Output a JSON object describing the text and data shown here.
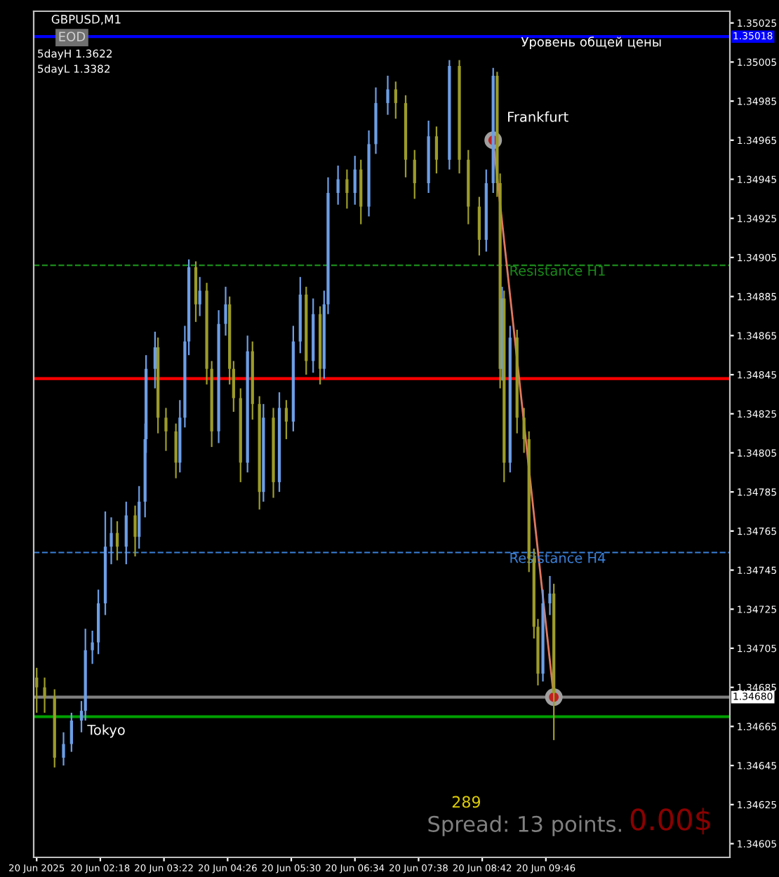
{
  "chart_data": {
    "type": "candlestick",
    "title": "GBPUSD,M1",
    "x": [
      "2025-06-20T01:14",
      "2025-06-20T01:22",
      "2025-06-20T01:32",
      "2025-06-20T01:41",
      "2025-06-20T01:49",
      "2025-06-20T01:59",
      "2025-06-20T02:03",
      "2025-06-20T02:10",
      "2025-06-20T02:16",
      "2025-06-20T02:23",
      "2025-06-20T02:29",
      "2025-06-20T02:35",
      "2025-06-20T02:44",
      "2025-06-20T02:53",
      "2025-06-20T02:57",
      "2025-06-20T03:03",
      "2025-06-20T03:04",
      "2025-06-20T03:13",
      "2025-06-20T03:16",
      "2025-06-20T03:24",
      "2025-06-20T03:34",
      "2025-06-20T03:38",
      "2025-06-20T03:43",
      "2025-06-20T03:47",
      "2025-06-20T03:54",
      "2025-06-20T03:58",
      "2025-06-20T04:05",
      "2025-06-20T04:10",
      "2025-06-20T04:17",
      "2025-06-20T04:24",
      "2025-06-20T04:28",
      "2025-06-20T04:32",
      "2025-06-20T04:39",
      "2025-06-20T04:46",
      "2025-06-20T04:51",
      "2025-06-20T04:58",
      "2025-06-20T05:02",
      "2025-06-20T05:12",
      "2025-06-20T05:18",
      "2025-06-20T05:25",
      "2025-06-20T05:32",
      "2025-06-20T05:39",
      "2025-06-20T05:45",
      "2025-06-20T05:52",
      "2025-06-20T05:59",
      "2025-06-20T06:03",
      "2025-06-20T06:07",
      "2025-06-20T06:17",
      "2025-06-20T06:26",
      "2025-06-20T06:34",
      "2025-06-20T06:40",
      "2025-06-20T06:48",
      "2025-06-20T06:55",
      "2025-06-20T07:07",
      "2025-06-20T07:15",
      "2025-06-20T07:25",
      "2025-06-20T07:34",
      "2025-06-20T07:48",
      "2025-06-20T07:56",
      "2025-06-20T08:09",
      "2025-06-20T08:19",
      "2025-06-20T08:28",
      "2025-06-20T08:39",
      "2025-06-20T08:46",
      "2025-06-20T08:53",
      "2025-06-20T08:57",
      "2025-06-20T09:00",
      "2025-06-20T09:02",
      "2025-06-20T09:04",
      "2025-06-20T09:10",
      "2025-06-20T09:17",
      "2025-06-20T09:24",
      "2025-06-20T09:29",
      "2025-06-20T09:34",
      "2025-06-20T09:38",
      "2025-06-20T09:43",
      "2025-06-20T09:50",
      "2025-06-20T09:54"
    ],
    "ohlc": [
      [
        1.3469,
        1.34695,
        1.34672,
        1.34685
      ],
      [
        1.34685,
        1.3469,
        1.34672,
        1.3468
      ],
      [
        1.3468,
        1.34684,
        1.34644,
        1.34649
      ],
      [
        1.34649,
        1.34662,
        1.34645,
        1.34656
      ],
      [
        1.34656,
        1.34672,
        1.34652,
        1.34668
      ],
      [
        1.34668,
        1.34678,
        1.34662,
        1.34673
      ],
      [
        1.34673,
        1.34715,
        1.34668,
        1.34704
      ],
      [
        1.34704,
        1.34714,
        1.34697,
        1.34708
      ],
      [
        1.34708,
        1.34735,
        1.34702,
        1.34728
      ],
      [
        1.34728,
        1.34775,
        1.34722,
        1.34757
      ],
      [
        1.34757,
        1.34772,
        1.34748,
        1.34764
      ],
      [
        1.34764,
        1.3477,
        1.3475,
        1.34757
      ],
      [
        1.34757,
        1.3478,
        1.34748,
        1.34773
      ],
      [
        1.34773,
        1.34778,
        1.34752,
        1.34762
      ],
      [
        1.34762,
        1.34788,
        1.34756,
        1.3478
      ],
      [
        1.3478,
        1.3482,
        1.34772,
        1.34812
      ],
      [
        1.34812,
        1.34855,
        1.34805,
        1.34848
      ],
      [
        1.34848,
        1.34867,
        1.34838,
        1.34859
      ],
      [
        1.34859,
        1.34864,
        1.34815,
        1.34823
      ],
      [
        1.34823,
        1.34828,
        1.34806,
        1.34816
      ],
      [
        1.34816,
        1.3482,
        1.34792,
        1.348
      ],
      [
        1.348,
        1.34832,
        1.34795,
        1.34823
      ],
      [
        1.34823,
        1.3487,
        1.34818,
        1.34862
      ],
      [
        1.34862,
        1.34904,
        1.34855,
        1.349
      ],
      [
        1.349,
        1.34903,
        1.34872,
        1.34881
      ],
      [
        1.34881,
        1.34895,
        1.34875,
        1.34888
      ],
      [
        1.34888,
        1.34892,
        1.3484,
        1.34848
      ],
      [
        1.34848,
        1.34852,
        1.34808,
        1.34816
      ],
      [
        1.34816,
        1.34878,
        1.3481,
        1.34871
      ],
      [
        1.34871,
        1.3489,
        1.34865,
        1.34881
      ],
      [
        1.34881,
        1.34885,
        1.3484,
        1.34848
      ],
      [
        1.34848,
        1.34852,
        1.34826,
        1.34833
      ],
      [
        1.34833,
        1.34838,
        1.3479,
        1.348
      ],
      [
        1.348,
        1.34865,
        1.34795,
        1.34857
      ],
      [
        1.34857,
        1.34862,
        1.34822,
        1.3483
      ],
      [
        1.3483,
        1.34834,
        1.34776,
        1.34785
      ],
      [
        1.34785,
        1.3483,
        1.3478,
        1.34823
      ],
      [
        1.34823,
        1.34828,
        1.34782,
        1.3479
      ],
      [
        1.3479,
        1.34836,
        1.34785,
        1.34828
      ],
      [
        1.34828,
        1.34832,
        1.34812,
        1.34821
      ],
      [
        1.34821,
        1.3487,
        1.34816,
        1.34862
      ],
      [
        1.34862,
        1.34895,
        1.34856,
        1.34886
      ],
      [
        1.34886,
        1.3489,
        1.34845,
        1.34852
      ],
      [
        1.34852,
        1.34884,
        1.34846,
        1.34876
      ],
      [
        1.34876,
        1.3488,
        1.3484,
        1.34848
      ],
      [
        1.34848,
        1.34888,
        1.34843,
        1.34881
      ],
      [
        1.34881,
        1.34946,
        1.34876,
        1.34938
      ],
      [
        1.34938,
        1.34952,
        1.34932,
        1.34945
      ],
      [
        1.34945,
        1.3495,
        1.3493,
        1.34938
      ],
      [
        1.34938,
        1.34957,
        1.34932,
        1.3495
      ],
      [
        1.3495,
        1.34955,
        1.34922,
        1.34931
      ],
      [
        1.34931,
        1.3497,
        1.34926,
        1.34963
      ],
      [
        1.34963,
        1.34992,
        1.34958,
        1.34984
      ],
      [
        1.34984,
        1.34998,
        1.34978,
        1.34991
      ],
      [
        1.34991,
        1.34995,
        1.34976,
        1.34984
      ],
      [
        1.34984,
        1.34988,
        1.34946,
        1.34955
      ],
      [
        1.34955,
        1.3496,
        1.34935,
        1.34943
      ],
      [
        1.34943,
        1.34975,
        1.34938,
        1.34967
      ],
      [
        1.34967,
        1.34972,
        1.34948,
        1.34955
      ],
      [
        1.34955,
        1.35006,
        1.3495,
        1.35003
      ],
      [
        1.35003,
        1.35006,
        1.34948,
        1.34955
      ],
      [
        1.34955,
        1.3496,
        1.34922,
        1.34931
      ],
      [
        1.34931,
        1.34936,
        1.34906,
        1.34914
      ],
      [
        1.34914,
        1.3495,
        1.34908,
        1.34943
      ],
      [
        1.34943,
        1.35002,
        1.34938,
        1.34998
      ],
      [
        1.34998,
        1.35,
        1.34936,
        1.34943
      ],
      [
        1.34943,
        1.34948,
        1.34838,
        1.34848
      ],
      [
        1.34848,
        1.3489,
        1.34842,
        1.34884
      ],
      [
        1.34884,
        1.34888,
        1.3479,
        1.348
      ],
      [
        1.348,
        1.3487,
        1.34795,
        1.34864
      ],
      [
        1.34864,
        1.34868,
        1.34815,
        1.34823
      ],
      [
        1.34823,
        1.34828,
        1.34805,
        1.34812
      ],
      [
        1.34812,
        1.34816,
        1.34744,
        1.34751
      ],
      [
        1.34751,
        1.34756,
        1.3471,
        1.34716
      ],
      [
        1.34716,
        1.3472,
        1.34686,
        1.34692
      ],
      [
        1.34692,
        1.34735,
        1.34688,
        1.34728
      ],
      [
        1.34728,
        1.34742,
        1.34722,
        1.34733
      ],
      [
        1.34733,
        1.34738,
        1.34658,
        1.34682
      ]
    ],
    "colors": [
      "#9c9c28",
      "#9c9c28",
      "#9c9c28",
      "#6c9ee6",
      "#6c9ee6",
      "#6c9ee6",
      "#6c9ee6",
      "#6c9ee6",
      "#6c9ee6",
      "#6c9ee6",
      "#6c9ee6",
      "#9c9c28",
      "#6c9ee6",
      "#9c9c28",
      "#6c9ee6",
      "#6c9ee6",
      "#6c9ee6",
      "#6c9ee6",
      "#9c9c28",
      "#9c9c28",
      "#9c9c28",
      "#6c9ee6",
      "#6c9ee6",
      "#6c9ee6",
      "#9c9c28",
      "#6c9ee6",
      "#9c9c28",
      "#9c9c28",
      "#6c9ee6",
      "#6c9ee6",
      "#9c9c28",
      "#9c9c28",
      "#9c9c28",
      "#6c9ee6",
      "#9c9c28",
      "#9c9c28",
      "#6c9ee6",
      "#9c9c28",
      "#6c9ee6",
      "#9c9c28",
      "#6c9ee6",
      "#6c9ee6",
      "#9c9c28",
      "#6c9ee6",
      "#9c9c28",
      "#6c9ee6",
      "#6c9ee6",
      "#6c9ee6",
      "#9c9c28",
      "#6c9ee6",
      "#9c9c28",
      "#6c9ee6",
      "#6c9ee6",
      "#6c9ee6",
      "#9c9c28",
      "#9c9c28",
      "#9c9c28",
      "#6c9ee6",
      "#9c9c28",
      "#6c9ee6",
      "#9c9c28",
      "#9c9c28",
      "#9c9c28",
      "#6c9ee6",
      "#6c9ee6",
      "#9c9c28",
      "#9c9c28",
      "#6c9ee6",
      "#9c9c28",
      "#6c9ee6",
      "#9c9c28",
      "#9c9c28",
      "#9c9c28",
      "#9c9c28",
      "#9c9c28",
      "#6c9ee6",
      "#6c9ee6",
      "#9c9c28"
    ],
    "series": [
      {
        "type": "line",
        "color": "#e07860",
        "marker": "circle",
        "x": [
          "2025-06-20T08:53",
          "2025-06-20T09:54"
        ],
        "values": [
          1.34965,
          1.3468
        ]
      }
    ],
    "xlim": [
      "2025-06-20T01:11",
      "2025-06-20T12:51"
    ],
    "xticks": [
      {
        "value": "2025-06-20T01:14",
        "label": "20 Jun 2025"
      },
      {
        "value": "2025-06-20T02:18",
        "label": "20 Jun 02:18"
      },
      {
        "value": "2025-06-20T03:22",
        "label": "20 Jun 03:22"
      },
      {
        "value": "2025-06-20T04:26",
        "label": "20 Jun 04:26"
      },
      {
        "value": "2025-06-20T05:30",
        "label": "20 Jun 05:30"
      },
      {
        "value": "2025-06-20T06:34",
        "label": "20 Jun 06:34"
      },
      {
        "value": "2025-06-20T07:38",
        "label": "20 Jun 07:38"
      },
      {
        "value": "2025-06-20T08:42",
        "label": "20 Jun 08:42"
      },
      {
        "value": "2025-06-20T09:46",
        "label": "20 Jun 09:46"
      }
    ],
    "ylim": [
      1.34598,
      1.35031
    ],
    "yticks": [
      1.35025,
      1.35005,
      1.34985,
      1.34965,
      1.34945,
      1.34925,
      1.34905,
      1.34885,
      1.34865,
      1.34845,
      1.34825,
      1.34805,
      1.34785,
      1.34765,
      1.34745,
      1.34725,
      1.34705,
      1.34685,
      1.34665,
      1.34645,
      1.34625,
      1.34605
    ],
    "ref_lines": [
      {
        "axis": "y",
        "value": 1.35018,
        "label": "1.35018",
        "color": "#0000ff"
      },
      {
        "axis": "y",
        "value": 1.34901,
        "label": "Resistance H1",
        "color": "#1a8a1a",
        "line_style": "dashed"
      },
      {
        "axis": "y",
        "value": 1.34843,
        "color": "#ff0000"
      },
      {
        "axis": "y",
        "value": 1.34754,
        "label": "Resistance H4",
        "color": "#3a80d8",
        "line_style": "dashed"
      },
      {
        "axis": "y",
        "value": 1.3468,
        "label": "1.34680",
        "color": "#808080"
      },
      {
        "axis": "y",
        "value": 1.3467,
        "color": "#00a000"
      }
    ],
    "annotations": [
      "5dayH 1.3622",
      "5dayL 1.3382",
      "EOD",
      "Уровень общей цены",
      "289",
      "Spread: 13 points.",
      "0.00$",
      {
        "text": "Frankfurt",
        "x": "2025-06-20T08:53",
        "y": 1.34965
      },
      {
        "text": "Tokyo",
        "x": "2025-06-20T01:59",
        "y": 1.3467
      }
    ]
  }
}
